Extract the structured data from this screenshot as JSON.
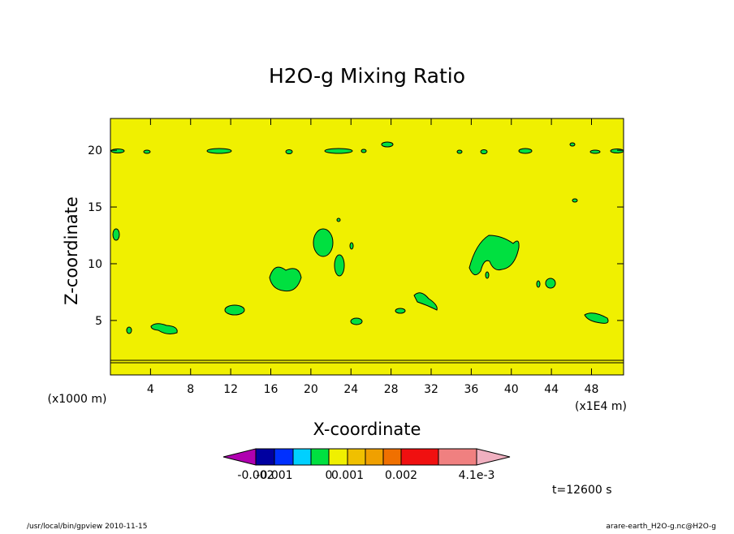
{
  "chart_data": {
    "type": "contour",
    "title": "H2O-g Mixing Ratio",
    "x_label": "X-coordinate",
    "y_label": "Z-coordinate",
    "x_unit": "(x1E4 m)",
    "y_unit": "(x1000 m)",
    "xlim": [
      0,
      51.2
    ],
    "xticks": [
      4,
      8,
      12,
      16,
      20,
      24,
      28,
      32,
      36,
      40,
      44,
      48
    ],
    "ylim": [
      0.2,
      22.8
    ],
    "yticks": [
      5,
      10,
      15,
      20
    ],
    "field_color": "#f0f000",
    "colorbar": {
      "colors": [
        "#b000b0",
        "#0000a0",
        "#0030ff",
        "#00d0ff",
        "#00e040",
        "#f0f000",
        "#f0c000",
        "#f0a000",
        "#f07000",
        "#f01010",
        "#f08080",
        "#f0b0c0"
      ],
      "ticks": [
        -0.002,
        -0.001,
        0,
        0.001,
        0.002,
        {
          "value": 0.0041,
          "label": "4.1e-3"
        }
      ]
    },
    "time_label": "t=12600 s",
    "footer_left": "/usr/local/bin/gpview  2010-11-15",
    "footer_right": "arare-earth_H2O-g.nc@H2O-g"
  }
}
